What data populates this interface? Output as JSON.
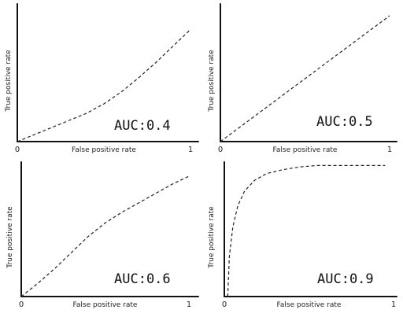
{
  "chart_data": [
    {
      "type": "line",
      "xlabel": "False positive rate",
      "ylabel": "True positive rate",
      "annotation": "AUC:0.4",
      "x_ticks": [
        "0",
        "1"
      ],
      "xlim": [
        0,
        1
      ],
      "ylim": [
        0,
        1
      ],
      "line_style": "dashed",
      "grid": false,
      "series": [
        {
          "x": [
            0,
            0.1,
            0.2,
            0.3,
            0.4,
            0.5,
            0.6,
            0.7,
            0.8,
            0.9,
            1.0
          ],
          "y": [
            0,
            0.06,
            0.12,
            0.18,
            0.24,
            0.32,
            0.42,
            0.54,
            0.67,
            0.81,
            0.95
          ]
        }
      ]
    },
    {
      "type": "line",
      "xlabel": "False positive rate",
      "ylabel": "True positive rate",
      "annotation": "AUC:0.5",
      "x_ticks": [
        "0",
        "1"
      ],
      "xlim": [
        0,
        1
      ],
      "ylim": [
        0,
        1
      ],
      "line_style": "dashed",
      "grid": false,
      "series": [
        {
          "x": [
            0,
            1.0
          ],
          "y": [
            0,
            1.0
          ]
        }
      ]
    },
    {
      "type": "line",
      "xlabel": "False positive rate",
      "ylabel": "True positive rate",
      "annotation": "AUC:0.6",
      "x_ticks": [
        "0",
        "1"
      ],
      "xlim": [
        0,
        1
      ],
      "ylim": [
        0,
        1
      ],
      "line_style": "dashed",
      "grid": false,
      "series": [
        {
          "x": [
            0,
            0.1,
            0.2,
            0.3,
            0.4,
            0.5,
            0.6,
            0.7,
            0.8,
            0.9,
            1.0
          ],
          "y": [
            0,
            0.1,
            0.21,
            0.33,
            0.45,
            0.55,
            0.63,
            0.7,
            0.77,
            0.84,
            0.9
          ]
        }
      ]
    },
    {
      "type": "line",
      "xlabel": "False positive rate",
      "ylabel": "True positive rate",
      "annotation": "AUC:0.9",
      "x_ticks": [
        "0",
        "1"
      ],
      "xlim": [
        0,
        1
      ],
      "ylim": [
        0,
        1
      ],
      "line_style": "dashed",
      "grid": false,
      "series": [
        {
          "x": [
            0.02,
            0.03,
            0.05,
            0.08,
            0.12,
            0.18,
            0.25,
            0.35,
            0.45,
            0.55,
            0.7,
            0.85,
            0.95
          ],
          "y": [
            0,
            0.3,
            0.52,
            0.68,
            0.79,
            0.87,
            0.92,
            0.95,
            0.97,
            0.98,
            0.98,
            0.98,
            0.98
          ]
        }
      ]
    }
  ]
}
